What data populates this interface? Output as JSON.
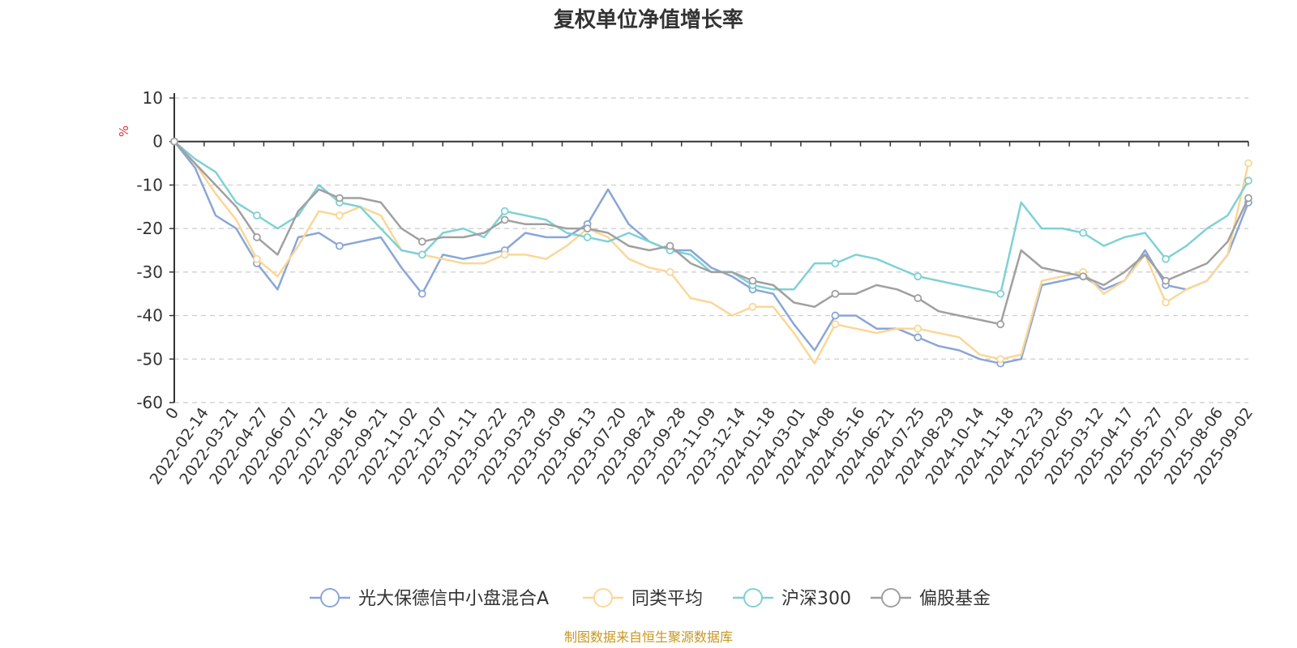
{
  "chart_data": {
    "type": "line",
    "title": "复权单位净值增长率",
    "ylabel": "%",
    "ylim": [
      -60,
      10
    ],
    "yticks": [
      10,
      0,
      -10,
      -20,
      -30,
      -40,
      -50,
      -60
    ],
    "x_ticks": [
      "0",
      "2022-02-14",
      "2022-03-21",
      "2022-04-27",
      "2022-06-07",
      "2022-07-12",
      "2022-08-16",
      "2022-09-21",
      "2022-11-02",
      "2022-12-07",
      "2023-01-11",
      "2023-02-22",
      "2023-03-29",
      "2023-05-09",
      "2023-06-13",
      "2023-07-20",
      "2023-08-24",
      "2023-09-28",
      "2023-11-09",
      "2023-12-14",
      "2024-01-18",
      "2024-03-01",
      "2024-04-08",
      "2024-05-16",
      "2024-06-21",
      "2024-07-25",
      "2024-08-29",
      "2024-10-14",
      "2024-11-18",
      "2024-12-23",
      "2025-02-05",
      "2025-03-12",
      "2025-04-17",
      "2025-05-27",
      "2025-07-02",
      "2025-08-06",
      "2025-09-02"
    ],
    "grid": "horizontal-dashed",
    "legend_position": "bottom",
    "series": [
      {
        "name": "光大保德信中小盘混合A",
        "color": "#8aa6d6",
        "values": [
          0,
          -6,
          -17,
          -20,
          -28,
          -34,
          -22,
          -21,
          -24,
          -23,
          -22,
          -29,
          -35,
          -26,
          -27,
          -26,
          -25,
          -21,
          -22,
          -22,
          -19,
          -11,
          -19,
          -23,
          -25,
          -25,
          -29,
          -31,
          -34,
          -35,
          -42,
          -48,
          -40,
          -40,
          -43,
          -43,
          -45,
          -47,
          -48,
          -50,
          -51,
          -50,
          -33,
          -32,
          -31,
          -34,
          -32,
          -25,
          -33,
          -34,
          -32,
          -26,
          -14
        ]
      },
      {
        "name": "同类平均",
        "color": "#fad797",
        "values": [
          0,
          -5,
          -12,
          -18,
          -27,
          -31,
          -24,
          -16,
          -17,
          -15,
          -17,
          -25,
          -26,
          -27,
          -28,
          -28,
          -26,
          -26,
          -27,
          -24,
          -20,
          -22,
          -27,
          -29,
          -30,
          -36,
          -37,
          -40,
          -38,
          -38,
          -44,
          -51,
          -42,
          -43,
          -44,
          -43,
          -43,
          -44,
          -45,
          -49,
          -50,
          -49,
          -32,
          -31,
          -30,
          -35,
          -32,
          -26,
          -37,
          -34,
          -32,
          -26,
          -5
        ]
      },
      {
        "name": "沪深300",
        "color": "#7fd1d4",
        "values": [
          0,
          -4,
          -7,
          -14,
          -17,
          -20,
          -17,
          -10,
          -14,
          -15,
          -20,
          -25,
          -26,
          -21,
          -20,
          -22,
          -16,
          -17,
          -18,
          -21,
          -22,
          -23,
          -21,
          -23,
          -25,
          -26,
          -30,
          -30,
          -33,
          -34,
          -34,
          -28,
          -28,
          -26,
          -27,
          -29,
          -31,
          -32,
          -33,
          -34,
          -35,
          -14,
          -20,
          -20,
          -21,
          -24,
          -22,
          -21,
          -27,
          -24,
          -20,
          -17,
          -9
        ]
      },
      {
        "name": "偏股基金",
        "color": "#a0a0a0",
        "values": [
          0,
          -5,
          -10,
          -15,
          -22,
          -26,
          -16,
          -11,
          -13,
          -13,
          -14,
          -20,
          -23,
          -22,
          -22,
          -21,
          -18,
          -19,
          -19,
          -20,
          -20,
          -21,
          -24,
          -25,
          -24,
          -28,
          -30,
          -30,
          -32,
          -33,
          -37,
          -38,
          -35,
          -35,
          -33,
          -34,
          -36,
          -39,
          -40,
          -41,
          -42,
          -25,
          -29,
          -30,
          -31,
          -33,
          -30,
          -26,
          -32,
          -30,
          -28,
          -23,
          -13
        ]
      }
    ],
    "source": "制图数据来自恒生聚源数据库"
  }
}
